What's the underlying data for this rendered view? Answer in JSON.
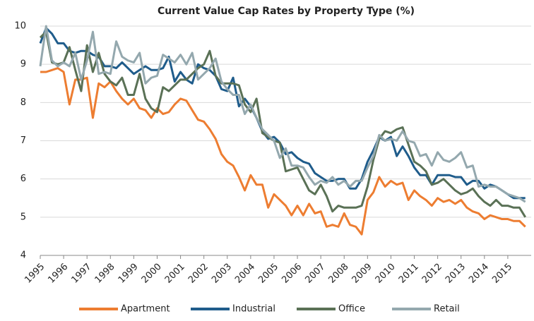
{
  "chart_data": {
    "type": "line",
    "title": "Current Value Cap Rates by Property Type (%)",
    "x": [
      1995,
      1995.25,
      1995.5,
      1995.75,
      1996,
      1996.25,
      1996.5,
      1996.75,
      1997,
      1997.25,
      1997.5,
      1997.75,
      1998,
      1998.25,
      1998.5,
      1998.75,
      1999,
      1999.25,
      1999.5,
      1999.75,
      2000,
      2000.25,
      2000.5,
      2000.75,
      2001,
      2001.25,
      2001.5,
      2001.75,
      2002,
      2002.25,
      2002.5,
      2002.75,
      2003,
      2003.25,
      2003.5,
      2003.75,
      2004,
      2004.25,
      2004.5,
      2004.75,
      2005,
      2005.25,
      2005.5,
      2005.75,
      2006,
      2006.25,
      2006.5,
      2006.75,
      2007,
      2007.25,
      2007.5,
      2007.75,
      2008,
      2008.25,
      2008.5,
      2008.75,
      2009,
      2009.25,
      2009.5,
      2009.75,
      2010,
      2010.25,
      2010.5,
      2010.75,
      2011,
      2011.25,
      2011.5,
      2011.75,
      2012,
      2012.25,
      2012.5,
      2012.75,
      2013,
      2013.25,
      2013.5,
      2013.75,
      2014,
      2014.25,
      2014.5,
      2014.75,
      2015,
      2015.25,
      2015.5,
      2015.75
    ],
    "series": [
      {
        "name": "Apartment",
        "color": "#ed7d31",
        "values": [
          8.8,
          8.8,
          8.85,
          8.9,
          8.8,
          7.95,
          8.6,
          8.6,
          8.65,
          7.6,
          8.5,
          8.4,
          8.55,
          8.3,
          8.1,
          7.95,
          8.1,
          7.85,
          7.8,
          7.6,
          7.85,
          7.7,
          7.75,
          7.95,
          8.1,
          8.05,
          7.8,
          7.55,
          7.5,
          7.3,
          7.05,
          6.65,
          6.45,
          6.35,
          6.05,
          5.7,
          6.1,
          5.85,
          5.85,
          5.25,
          5.6,
          5.45,
          5.3,
          5.05,
          5.3,
          5.05,
          5.35,
          5.1,
          5.15,
          4.75,
          4.8,
          4.75,
          5.1,
          4.8,
          4.75,
          4.55,
          5.45,
          5.65,
          6.05,
          5.8,
          5.95,
          5.85,
          5.9,
          5.45,
          5.7,
          5.55,
          5.45,
          5.3,
          5.5,
          5.4,
          5.45,
          5.35,
          5.45,
          5.25,
          5.15,
          5.1,
          4.95,
          5.05,
          5.0,
          4.95,
          4.95,
          4.9,
          4.9,
          4.75
        ]
      },
      {
        "name": "Industrial",
        "color": "#1f5c8b",
        "values": [
          9.55,
          9.95,
          9.8,
          9.55,
          9.55,
          9.35,
          9.3,
          9.35,
          9.35,
          9.25,
          9.2,
          8.95,
          8.95,
          8.9,
          9.05,
          8.9,
          8.75,
          8.85,
          8.95,
          8.85,
          8.85,
          8.9,
          9.2,
          8.55,
          8.8,
          8.6,
          8.5,
          9.0,
          8.9,
          8.85,
          8.7,
          8.35,
          8.3,
          8.65,
          7.9,
          8.1,
          7.9,
          7.6,
          7.25,
          7.05,
          7.1,
          6.95,
          6.65,
          6.7,
          6.55,
          6.45,
          6.4,
          6.15,
          6.05,
          5.95,
          5.95,
          6.0,
          6.0,
          5.75,
          5.75,
          6.0,
          6.45,
          6.75,
          7.1,
          7.0,
          7.1,
          6.6,
          6.85,
          6.6,
          6.3,
          6.1,
          6.1,
          5.85,
          6.1,
          6.1,
          6.1,
          6.05,
          6.05,
          5.85,
          5.95,
          5.95,
          5.75,
          5.85,
          5.8,
          5.7,
          5.6,
          5.5,
          5.5,
          5.5
        ]
      },
      {
        "name": "Office",
        "color": "#5a7156",
        "values": [
          9.7,
          9.85,
          9.05,
          9.0,
          9.05,
          9.45,
          8.85,
          8.3,
          9.5,
          8.8,
          9.3,
          8.75,
          8.55,
          8.45,
          8.65,
          8.2,
          8.2,
          8.75,
          8.1,
          7.85,
          7.75,
          8.4,
          8.3,
          8.45,
          8.6,
          8.6,
          8.75,
          8.9,
          9.0,
          9.35,
          8.7,
          8.5,
          8.5,
          8.5,
          8.45,
          7.95,
          7.75,
          8.1,
          7.2,
          7.1,
          7.0,
          6.95,
          6.2,
          6.25,
          6.3,
          6.0,
          5.7,
          5.6,
          5.85,
          5.55,
          5.15,
          5.3,
          5.25,
          5.25,
          5.25,
          5.3,
          5.8,
          6.5,
          7.05,
          7.25,
          7.2,
          7.3,
          7.35,
          6.9,
          6.45,
          6.35,
          6.2,
          5.85,
          5.9,
          6.0,
          5.85,
          5.7,
          5.6,
          5.65,
          5.75,
          5.55,
          5.4,
          5.3,
          5.45,
          5.3,
          5.3,
          5.25,
          5.25,
          5.0
        ]
      },
      {
        "name": "Retail",
        "color": "#94a8ae",
        "values": [
          8.95,
          10.0,
          9.1,
          8.95,
          9.05,
          8.95,
          9.3,
          8.6,
          9.1,
          9.85,
          8.75,
          8.8,
          8.75,
          9.6,
          9.2,
          9.1,
          9.05,
          9.3,
          8.5,
          8.65,
          8.7,
          9.25,
          9.15,
          9.05,
          9.25,
          9.0,
          9.3,
          8.6,
          8.75,
          8.9,
          9.15,
          8.55,
          8.35,
          8.2,
          8.2,
          7.7,
          7.95,
          7.6,
          7.3,
          7.15,
          7.0,
          6.55,
          6.8,
          6.35,
          6.35,
          6.3,
          6.05,
          5.85,
          5.95,
          5.9,
          6.05,
          5.85,
          5.95,
          5.8,
          5.95,
          5.95,
          6.3,
          6.6,
          7.15,
          7.0,
          7.05,
          7.0,
          7.25,
          7.0,
          6.95,
          6.6,
          6.65,
          6.35,
          6.7,
          6.5,
          6.45,
          6.55,
          6.7,
          6.3,
          6.35,
          5.8,
          5.85,
          5.8,
          5.8,
          5.7,
          5.6,
          5.55,
          5.5,
          5.4
        ]
      }
    ],
    "xlim": [
      1995,
      2016
    ],
    "xticks": [
      1995,
      1996,
      1997,
      1998,
      1999,
      2000,
      2001,
      2002,
      2003,
      2004,
      2005,
      2006,
      2007,
      2008,
      2009,
      2010,
      2011,
      2012,
      2013,
      2014,
      2015
    ],
    "ylim": [
      4,
      10
    ],
    "yticks": [
      4,
      5,
      6,
      7,
      8,
      9,
      10
    ],
    "grid": true,
    "legend": "bottom"
  }
}
